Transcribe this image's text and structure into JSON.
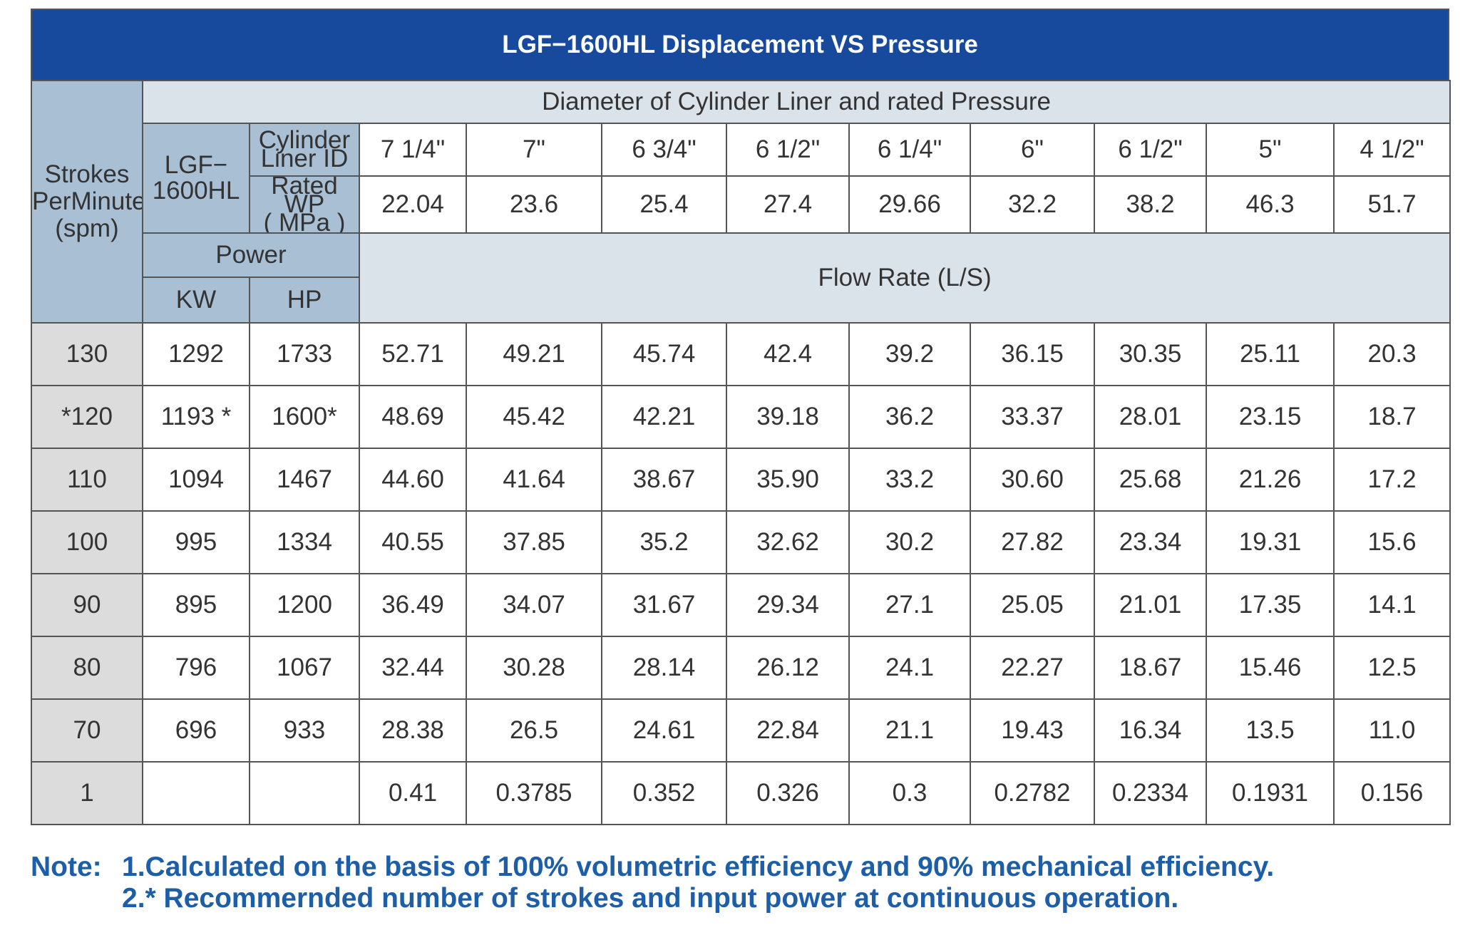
{
  "title": "LGF−1600HL Displacement VS Pressure",
  "header": {
    "spm_label": [
      "Strokes",
      "PerMinute",
      "(spm)"
    ],
    "diameter_label": "Diameter of Cylinder Liner and rated Pressure",
    "model_label": [
      "LGF−",
      "1600HL"
    ],
    "liner_id_label": [
      "Cylinder",
      "Liner ID"
    ],
    "rated_wp_label": [
      "Rated WP",
      "( MPa )"
    ],
    "power_label": "Power",
    "kw_label": "KW",
    "hp_label": "HP",
    "flow_rate_label": "Flow Rate (L/S)",
    "liner_sizes": [
      "7 1/4\"",
      "7\"",
      "6 3/4\"",
      "6 1/2\"",
      "6 1/4\"",
      "6\"",
      "6 1/2\"",
      "5\"",
      "4 1/2\""
    ],
    "rated_pressures": [
      "22.04",
      "23.6",
      "25.4",
      "27.4",
      "29.66",
      "32.2",
      "38.2",
      "46.3",
      "51.7"
    ]
  },
  "rows": [
    {
      "spm": "130",
      "kw": "1292",
      "hp": "1733",
      "flows": [
        "52.71",
        "49.21",
        "45.74",
        "42.4",
        "39.2",
        "36.15",
        "30.35",
        "25.11",
        "20.3"
      ]
    },
    {
      "spm": "*120",
      "kw": "1193 *",
      "hp": "1600*",
      "flows": [
        "48.69",
        "45.42",
        "42.21",
        "39.18",
        "36.2",
        "33.37",
        "28.01",
        "23.15",
        "18.7"
      ]
    },
    {
      "spm": "110",
      "kw": "1094",
      "hp": "1467",
      "flows": [
        "44.60",
        "41.64",
        "38.67",
        "35.90",
        "33.2",
        "30.60",
        "25.68",
        "21.26",
        "17.2"
      ]
    },
    {
      "spm": "100",
      "kw": "995",
      "hp": "1334",
      "flows": [
        "40.55",
        "37.85",
        "35.2",
        "32.62",
        "30.2",
        "27.82",
        "23.34",
        "19.31",
        "15.6"
      ]
    },
    {
      "spm": "90",
      "kw": "895",
      "hp": "1200",
      "flows": [
        "36.49",
        "34.07",
        "31.67",
        "29.34",
        "27.1",
        "25.05",
        "21.01",
        "17.35",
        "14.1"
      ]
    },
    {
      "spm": "80",
      "kw": "796",
      "hp": "1067",
      "flows": [
        "32.44",
        "30.28",
        "28.14",
        "26.12",
        "24.1",
        "22.27",
        "18.67",
        "15.46",
        "12.5"
      ]
    },
    {
      "spm": "70",
      "kw": "696",
      "hp": "933",
      "flows": [
        "28.38",
        "26.5",
        "24.61",
        "22.84",
        "21.1",
        "19.43",
        "16.34",
        "13.5",
        "11.0"
      ]
    },
    {
      "spm": "1",
      "kw": "",
      "hp": "",
      "flows": [
        "0.41",
        "0.3785",
        "0.352",
        "0.326",
        "0.3",
        "0.2782",
        "0.2334",
        "0.1931",
        "0.156"
      ]
    }
  ],
  "notes": {
    "prefix": "Note:",
    "line1": "1.Calculated on the basis of 100% volumetric efficiency and 90% mechanical efficiency.",
    "line2": "2.* Recommernded number of strokes and input power at continuous operation."
  },
  "colors": {
    "title_bg": "#174a9c",
    "header_bg": "#a9bfd3",
    "header_light_bg": "#dbe3ea",
    "spm_column_bg": "#dcdcdc",
    "note_text": "#1c5ea8"
  }
}
